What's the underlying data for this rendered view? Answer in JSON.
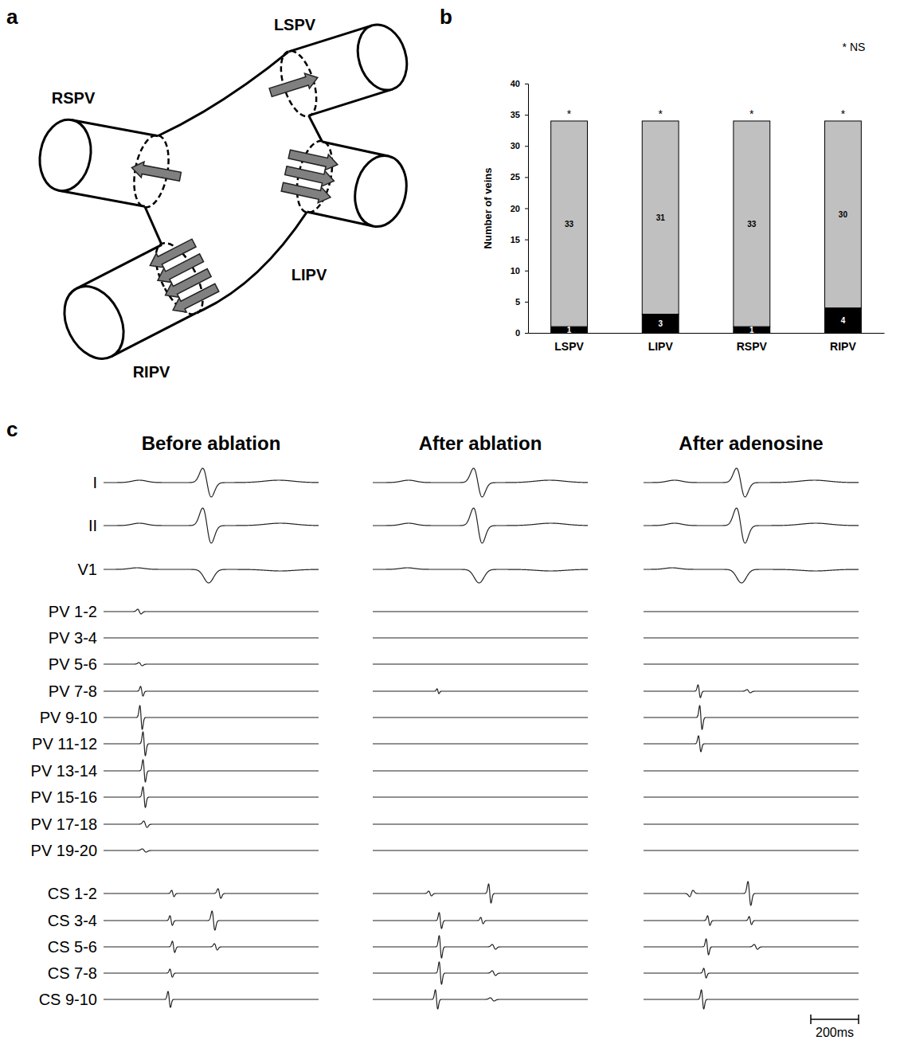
{
  "panel_labels": [
    "a",
    "b",
    "c"
  ],
  "diagram": {
    "veins": [
      {
        "label": "LSPV",
        "arrows": 1
      },
      {
        "label": "LIPV",
        "arrows": 3
      },
      {
        "label": "RSPV",
        "arrows": 1
      },
      {
        "label": "RIPV",
        "arrows": 4
      }
    ]
  },
  "chart_data": {
    "type": "bar",
    "stacked": true,
    "data_labels": true,
    "grid": false,
    "ylabel": "Number of veins",
    "categories": [
      "LSPV",
      "LIPV",
      "RSPV",
      "RIPV"
    ],
    "series": [
      {
        "color": "#000000",
        "values": [
          1,
          3,
          1,
          4
        ]
      },
      {
        "color": "#c0c0c0",
        "values": [
          33,
          31,
          33,
          30
        ]
      }
    ],
    "ylim": [
      0,
      40
    ],
    "yticks": [
      0,
      5,
      10,
      15,
      20,
      25,
      30,
      35,
      40
    ],
    "bar_annotations": [
      "*",
      "*",
      "*",
      "*"
    ],
    "annotation": "* NS"
  },
  "traces": {
    "channels": [
      "I",
      "II",
      "V1",
      "PV 1-2",
      "PV 3-4",
      "PV 5-6",
      "PV 7-8",
      "PV 9-10",
      "PV 11-12",
      "PV 13-14",
      "PV 15-16",
      "PV 17-18",
      "PV 19-20",
      "CS 1-2",
      "CS 3-4",
      "CS 5-6",
      "CS 7-8",
      "CS 9-10"
    ],
    "time_window_ms": [
      0,
      900
    ],
    "scale_bar": {
      "value": 200,
      "label": "200ms"
    },
    "panels": [
      {
        "title": "Before ablation",
        "events": [
          [
            [
              150,
              3,
              30
            ],
            [
              433,
              18,
              18
            ],
            [
              733,
              3,
              60
            ]
          ],
          [
            [
              150,
              3,
              30
            ],
            [
              433,
              22,
              18
            ],
            [
              740,
              3,
              60
            ]
          ],
          [
            [
              140,
              2,
              30
            ],
            [
              440,
              -17,
              20
            ],
            [
              740,
              -2,
              60
            ]
          ],
          [
            [
              150,
              3,
              7
            ]
          ],
          [],
          [
            [
              155,
              2,
              7
            ]
          ],
          [
            [
              160,
              6,
              5
            ]
          ],
          [
            [
              157,
              15,
              5
            ]
          ],
          [
            [
              170,
              15,
              5
            ]
          ],
          [
            [
              170,
              14,
              5
            ]
          ],
          [
            [
              170,
              13,
              5
            ]
          ],
          [
            [
              175,
              4,
              7
            ]
          ],
          [
            [
              170,
              2,
              8
            ]
          ],
          [
            [
              290,
              4,
              5
            ],
            [
              485,
              6,
              6
            ]
          ],
          [
            [
              283,
              6,
              5
            ],
            [
              460,
              12,
              6
            ]
          ],
          [
            [
              293,
              7,
              5
            ],
            [
              470,
              4,
              6
            ]
          ],
          [
            [
              283,
              5,
              5
            ]
          ],
          [
            [
              275,
              10,
              5
            ]
          ]
        ]
      },
      {
        "title": "After ablation",
        "events": [
          [
            [
              150,
              3,
              30
            ],
            [
              440,
              18,
              18
            ],
            [
              740,
              3,
              60
            ]
          ],
          [
            [
              150,
              3,
              30
            ],
            [
              440,
              22,
              18
            ],
            [
              745,
              3,
              60
            ]
          ],
          [
            [
              145,
              2,
              30
            ],
            [
              445,
              -17,
              20
            ],
            [
              745,
              -2,
              60
            ]
          ],
          [],
          [],
          [],
          [
            [
              273,
              3,
              4
            ]
          ],
          [],
          [],
          [],
          [],
          [],
          [],
          [
            [
              240,
              3,
              6
            ],
            [
              490,
              12,
              5
            ]
          ],
          [
            [
              283,
              10,
              5
            ],
            [
              457,
              4,
              5
            ]
          ],
          [
            [
              283,
              14,
              5
            ],
            [
              507,
              3,
              7
            ]
          ],
          [
            [
              283,
              14,
              5
            ],
            [
              507,
              3,
              7
            ]
          ],
          [
            [
              267,
              12,
              5
            ],
            [
              500,
              2,
              8
            ]
          ]
        ]
      },
      {
        "title": "After adenosine",
        "events": [
          [
            [
              130,
              3,
              30
            ],
            [
              407,
              18,
              18
            ],
            [
              715,
              3,
              60
            ]
          ],
          [
            [
              130,
              3,
              30
            ],
            [
              407,
              22,
              18
            ],
            [
              720,
              3,
              60
            ]
          ],
          [
            [
              120,
              2,
              30
            ],
            [
              410,
              -17,
              20
            ],
            [
              720,
              -2,
              60
            ]
          ],
          [],
          [],
          [],
          [
            [
              233,
              8,
              5
            ],
            [
              440,
              2,
              7
            ]
          ],
          [
            [
              240,
              15,
              5
            ]
          ],
          [
            [
              235,
              10,
              5
            ]
          ],
          [],
          [],
          [],
          [],
          [
            [
              200,
              -4,
              7
            ],
            [
              443,
              15,
              6
            ]
          ],
          [
            [
              273,
              6,
              5
            ],
            [
              447,
              5,
              5
            ]
          ],
          [
            [
              267,
              10,
              5
            ],
            [
              470,
              3,
              7
            ]
          ],
          [
            [
              257,
              6,
              5
            ]
          ],
          [
            [
              247,
              12,
              5
            ]
          ]
        ]
      }
    ]
  }
}
